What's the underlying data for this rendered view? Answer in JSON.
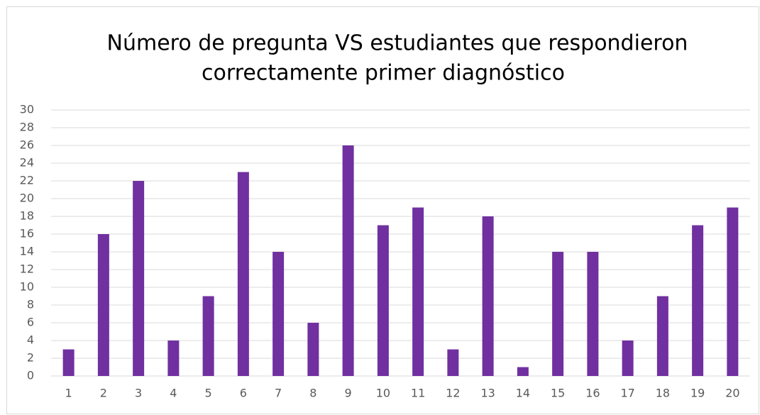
{
  "chart_data": {
    "type": "bar",
    "title": [
      "Número de pregunta VS estudiantes que respondieron",
      "correctamente primer diagnóstico"
    ],
    "categories": [
      "1",
      "2",
      "3",
      "4",
      "5",
      "6",
      "7",
      "8",
      "9",
      "10",
      "11",
      "12",
      "13",
      "14",
      "15",
      "16",
      "17",
      "18",
      "19",
      "20"
    ],
    "values": [
      3,
      16,
      22,
      4,
      9,
      23,
      14,
      6,
      26,
      17,
      19,
      3,
      18,
      1,
      14,
      14,
      4,
      9,
      17,
      19
    ],
    "color": "#7030a0",
    "ylim": [
      0,
      30
    ],
    "yticks": [
      0,
      2,
      4,
      6,
      8,
      10,
      12,
      14,
      16,
      18,
      20,
      22,
      24,
      26,
      28,
      30
    ],
    "grid": true
  }
}
